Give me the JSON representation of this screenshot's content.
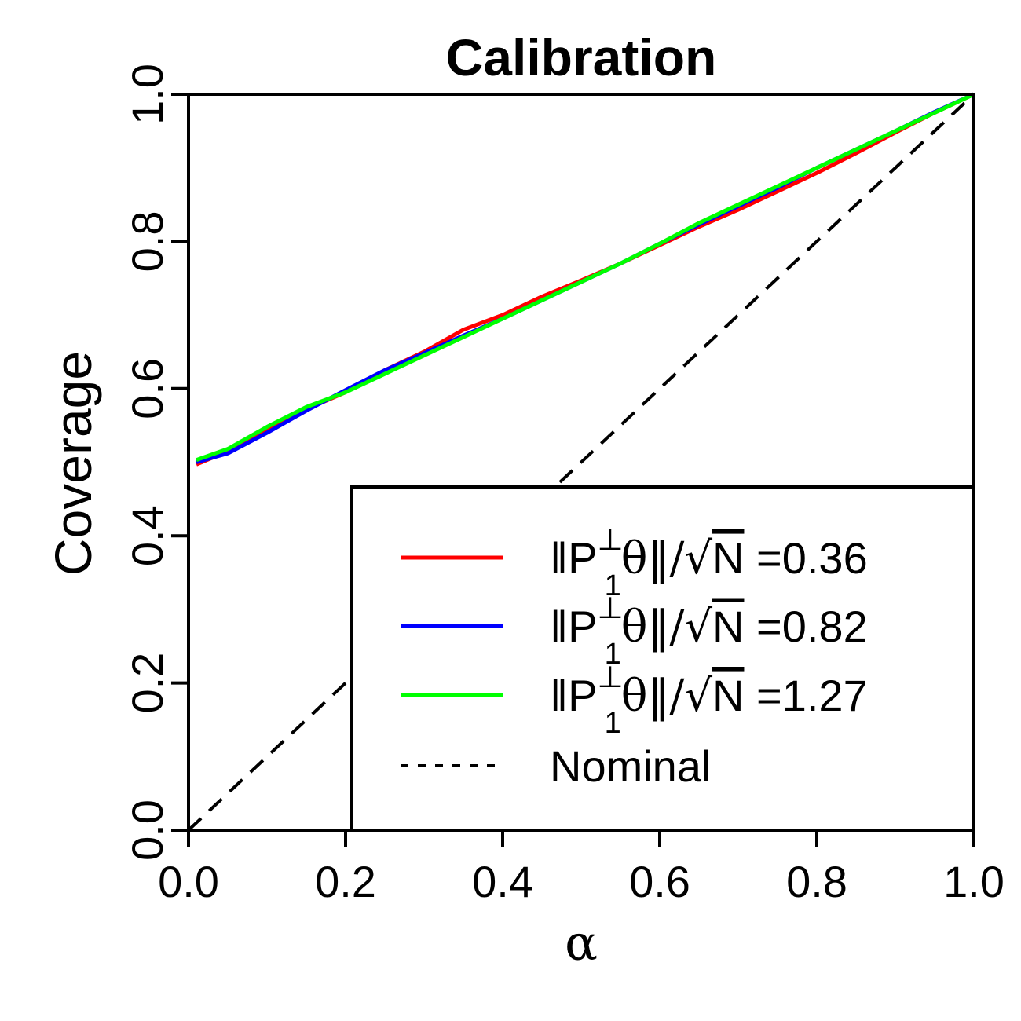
{
  "chart_data": {
    "type": "line",
    "title": "Calibration",
    "xlabel": "α",
    "ylabel": "Coverage",
    "xlim": [
      0,
      1
    ],
    "ylim": [
      0,
      1
    ],
    "xticks": [
      "0.0",
      "0.2",
      "0.4",
      "0.6",
      "0.8",
      "1.0"
    ],
    "yticks": [
      "0.0",
      "0.2",
      "0.4",
      "0.6",
      "0.8",
      "1.0"
    ],
    "grid": false,
    "legend_position": "bottom-right",
    "x": [
      0.01,
      0.05,
      0.1,
      0.15,
      0.2,
      0.25,
      0.3,
      0.35,
      0.4,
      0.45,
      0.5,
      0.55,
      0.6,
      0.65,
      0.7,
      0.75,
      0.8,
      0.85,
      0.9,
      0.95,
      1.0
    ],
    "series": [
      {
        "label_prefix": "‖P",
        "label_sup": "⊥",
        "label_sub": "1",
        "label_mid": "θ‖/√",
        "label_n": "N",
        "label_value": " =0.36",
        "color": "#ff0000",
        "style": "solid",
        "values": [
          0.497,
          0.515,
          0.545,
          0.572,
          0.595,
          0.625,
          0.65,
          0.68,
          0.7,
          0.725,
          0.747,
          0.77,
          0.795,
          0.82,
          0.843,
          0.868,
          0.893,
          0.92,
          0.948,
          0.975,
          1.0
        ]
      },
      {
        "label_prefix": "‖P",
        "label_sup": "⊥",
        "label_sub": "1",
        "label_mid": "θ‖/√",
        "label_n": "N",
        "label_value": " =0.82",
        "color": "#0000ff",
        "style": "solid",
        "values": [
          0.5,
          0.512,
          0.54,
          0.57,
          0.598,
          0.625,
          0.648,
          0.672,
          0.695,
          0.72,
          0.745,
          0.77,
          0.797,
          0.823,
          0.848,
          0.873,
          0.9,
          0.925,
          0.95,
          0.976,
          1.0
        ]
      },
      {
        "label_prefix": "‖P",
        "label_sup": "⊥",
        "label_sub": "1",
        "label_mid": "θ‖/√",
        "label_n": "N",
        "label_value": " =1.27",
        "color": "#00ff00",
        "style": "solid",
        "values": [
          0.503,
          0.518,
          0.548,
          0.575,
          0.595,
          0.62,
          0.645,
          0.67,
          0.695,
          0.72,
          0.745,
          0.77,
          0.797,
          0.825,
          0.85,
          0.875,
          0.9,
          0.925,
          0.95,
          0.975,
          1.0
        ]
      }
    ],
    "reference": {
      "label": "Nominal",
      "color": "#000000",
      "style": "dashed",
      "x": [
        0,
        1
      ],
      "values": [
        0,
        1
      ]
    }
  }
}
